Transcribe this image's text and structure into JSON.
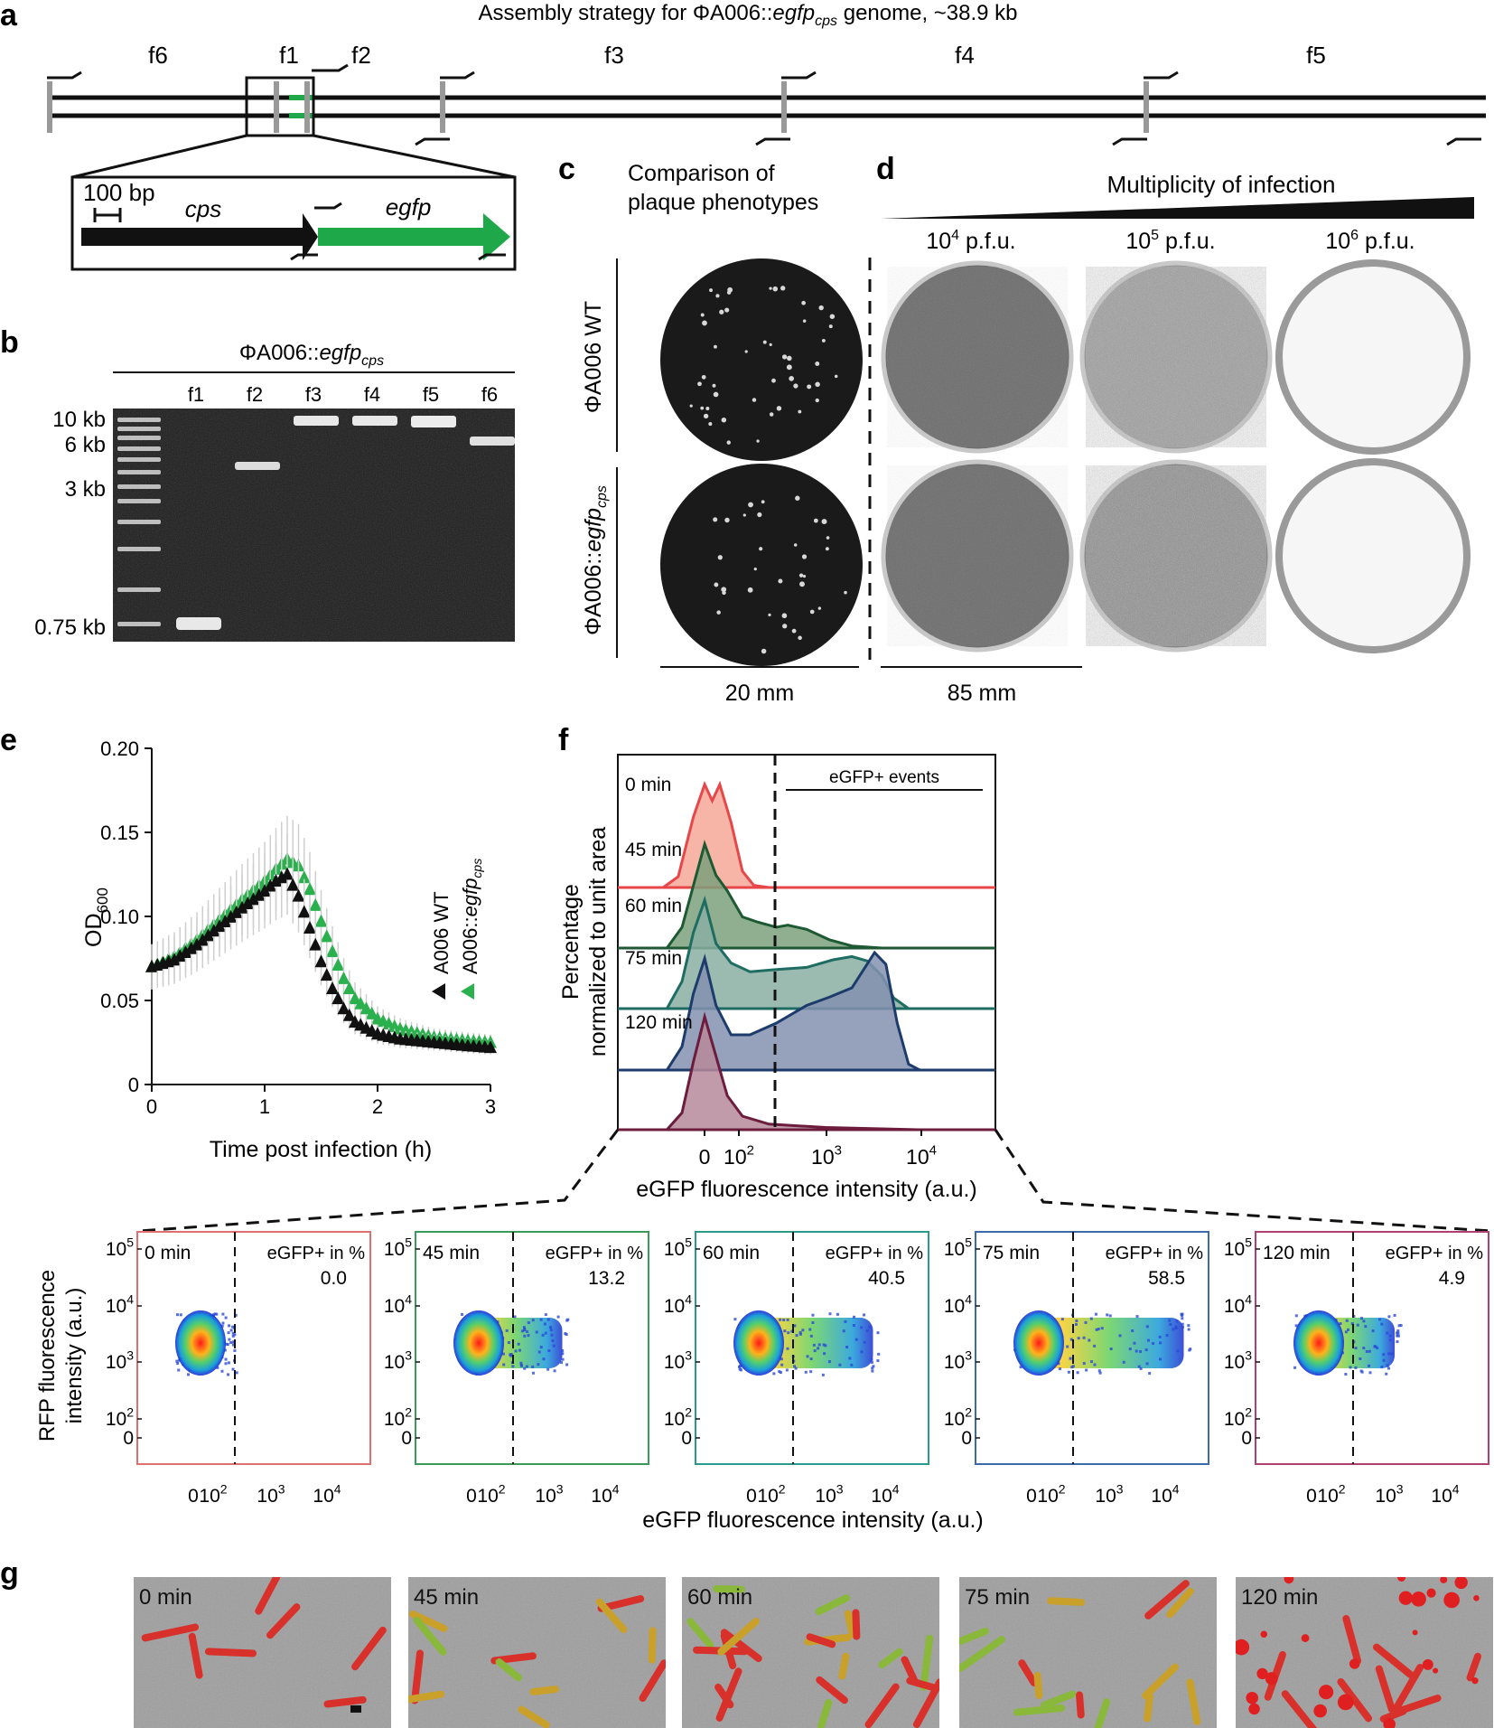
{
  "panels": {
    "a": "a",
    "b": "b",
    "c": "c",
    "d": "d",
    "e": "e",
    "f": "f",
    "g": "g"
  },
  "panel_a": {
    "title_prefix": "Assembly strategy for ΦA006::",
    "title_gene": "egfp",
    "title_sub": "cps",
    "title_suffix": " genome, ~38.9 kb",
    "fragments": [
      "f6",
      "f1",
      "f2",
      "f3",
      "f4",
      "f5"
    ],
    "scale_label": "100 bp",
    "gene_cps": "cps",
    "gene_egfp": "egfp",
    "colors": {
      "egfp": "#1fa84a",
      "backbone": "#111111",
      "junction": "#9a9a9a"
    }
  },
  "panel_b": {
    "title_prefix": "ΦA006::",
    "title_gene": "egfp",
    "title_sub": "cps",
    "lanes": [
      "f1",
      "f2",
      "f3",
      "f4",
      "f5",
      "f6"
    ],
    "ladder": [
      "10 kb",
      "6 kb",
      "3 kb",
      "0.75 kb"
    ]
  },
  "panel_c": {
    "title_line1": "Comparison of",
    "title_line2": "plaque phenotypes",
    "row_wt": "ΦA006 WT",
    "row_mut_prefix": "ΦA006::",
    "row_mut_gene": "egfp",
    "row_mut_sub": "cps",
    "scale": "20 mm"
  },
  "panel_d": {
    "title": "Multiplicity of infection",
    "doses": [
      {
        "base": "10",
        "exp": "4",
        "unit": " p.f.u."
      },
      {
        "base": "10",
        "exp": "5",
        "unit": " p.f.u."
      },
      {
        "base": "10",
        "exp": "6",
        "unit": " p.f.u."
      }
    ],
    "scale": "85 mm"
  },
  "panel_e": {
    "chart_data": {
      "type": "scatter",
      "ylabel": "OD",
      "ylabel_sub": "600",
      "xlabel": "Time post infection (h)",
      "xlim": [
        0,
        3
      ],
      "ylim": [
        0,
        0.2
      ],
      "xticks": [
        "0",
        "1",
        "2",
        "3"
      ],
      "yticks": [
        "0",
        "0.05",
        "0.10",
        "0.15",
        "0.20"
      ],
      "legend": [
        {
          "name": "A006 WT",
          "color": "#111111"
        },
        {
          "name_prefix": "A006::",
          "name_gene": "egfp",
          "name_sub": "cps",
          "color": "#2bb04e"
        }
      ],
      "series": [
        {
          "name": "A006 WT",
          "color": "#111111",
          "x": [
            0,
            0.2,
            0.4,
            0.6,
            0.8,
            1.0,
            1.1,
            1.2,
            1.3,
            1.4,
            1.5,
            1.6,
            1.7,
            1.8,
            2.0,
            2.2,
            2.5,
            2.8,
            3.0
          ],
          "y": [
            0.07,
            0.074,
            0.083,
            0.094,
            0.105,
            0.115,
            0.121,
            0.125,
            0.112,
            0.093,
            0.073,
            0.057,
            0.045,
            0.037,
            0.03,
            0.027,
            0.025,
            0.023,
            0.022
          ]
        },
        {
          "name": "A006::egfp_cps",
          "color": "#2bb04e",
          "x": [
            0,
            0.2,
            0.4,
            0.6,
            0.8,
            1.0,
            1.1,
            1.2,
            1.3,
            1.4,
            1.5,
            1.6,
            1.7,
            1.8,
            2.0,
            2.2,
            2.5,
            2.8,
            3.0
          ],
          "y": [
            0.07,
            0.076,
            0.086,
            0.098,
            0.11,
            0.121,
            0.128,
            0.134,
            0.13,
            0.116,
            0.097,
            0.079,
            0.063,
            0.051,
            0.039,
            0.033,
            0.028,
            0.026,
            0.025
          ]
        }
      ]
    }
  },
  "panel_f": {
    "ylabel_line1": "Percentage",
    "ylabel_line2": "normalized to unit area",
    "xlabel": "eGFP fluorescence intensity (a.u.)",
    "gate_label": "eGFP+ events",
    "xticks": [
      {
        "base": "0"
      },
      {
        "base": "10",
        "exp": "2"
      },
      {
        "base": "10",
        "exp": "3"
      },
      {
        "base": "10",
        "exp": "4"
      }
    ],
    "chart_data": {
      "type": "area",
      "series": [
        {
          "name": "0 min",
          "color": "#e8474a",
          "fill": "#f4a898"
        },
        {
          "name": "45 min",
          "color": "#1d5a33",
          "fill": "#7da07c"
        },
        {
          "name": "60 min",
          "color": "#1f6d62",
          "fill": "#89aea2"
        },
        {
          "name": "75 min",
          "color": "#1d3c6c",
          "fill": "#8491b0"
        },
        {
          "name": "120 min",
          "color": "#6c1c3c",
          "fill": "#b6899a"
        }
      ]
    }
  },
  "panel_flow": {
    "ylabel_line1": "RFP fluorescence",
    "ylabel_line2": "intensity (a.u.)",
    "xlabel": "eGFP fluorescence intensity (a.u.)",
    "gate_caption": "eGFP+ in %",
    "yticks": [
      {
        "base": "10",
        "exp": "5"
      },
      {
        "base": "10",
        "exp": "4"
      },
      {
        "base": "10",
        "exp": "3"
      },
      {
        "base": "10",
        "exp": "2"
      },
      {
        "base": "0"
      }
    ],
    "xticks": [
      {
        "base": "0"
      },
      {
        "base": "10",
        "exp": "2"
      },
      {
        "base": "10",
        "exp": "3"
      },
      {
        "base": "10",
        "exp": "4"
      }
    ],
    "chart_data": [
      {
        "type": "scatter",
        "time": "0 min",
        "egfp_pos_percent": "0.0",
        "color": "#e07070"
      },
      {
        "type": "scatter",
        "time": "45 min",
        "egfp_pos_percent": "13.2",
        "color": "#3a9a5a"
      },
      {
        "type": "scatter",
        "time": "60 min",
        "egfp_pos_percent": "40.5",
        "color": "#2a9a8a"
      },
      {
        "type": "scatter",
        "time": "75 min",
        "egfp_pos_percent": "58.5",
        "color": "#3a6aa8"
      },
      {
        "type": "scatter",
        "time": "120 min",
        "egfp_pos_percent": "4.9",
        "color": "#b04070"
      }
    ]
  },
  "panel_g": {
    "frames": [
      "0 min",
      "45 min",
      "60 min",
      "75 min",
      "120 min"
    ]
  }
}
